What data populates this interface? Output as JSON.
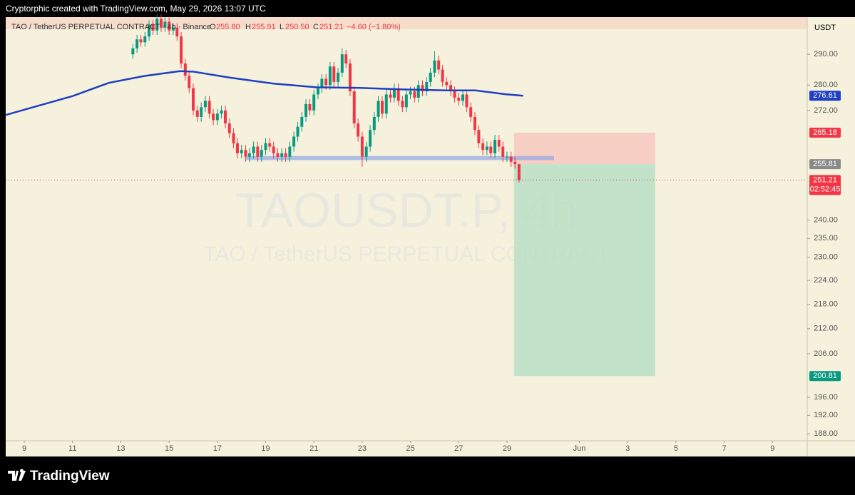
{
  "top_bar": "Cryptorphic created with TradingView.com, May 29, 2026 13:07 UTC",
  "footer": {
    "brand": "TradingView"
  },
  "chart_data": {
    "type": "candlestick",
    "symbol": "TAO / TetherUS PERPETUAL CONTRACT · 4h · Binance",
    "legend": {
      "o_label": "O",
      "o": "255.80",
      "h_label": "H",
      "h": "255.91",
      "l_label": "L",
      "l": "250.50",
      "c_label": "C",
      "c": "251.21",
      "change": "−4.60 (−1.80%)"
    },
    "watermark": "TAOUSDT.P, 4h",
    "watermark_sub": "TAO / TetherUS PERPETUAL CONTRACT",
    "currency": "USDT",
    "log_scale": true,
    "up_color": "#089981",
    "down_color": "#f23645",
    "xlim": [
      8.23,
      41.44
    ],
    "xticks": [
      9,
      11,
      13,
      15,
      17,
      19,
      21,
      23,
      25,
      27,
      29,
      {
        "value": 32,
        "label": "Jun"
      },
      {
        "value": 34,
        "label": "3"
      },
      {
        "value": 36,
        "label": "5"
      },
      {
        "value": 38,
        "label": "7"
      },
      {
        "value": 40,
        "label": "9"
      }
    ],
    "ylim": [
      186.5,
      302.6
    ],
    "yticks": [
      {
        "value": 290,
        "label": "290.00"
      },
      {
        "value": 280,
        "label": "280.00"
      },
      {
        "value": 272,
        "label": "272.00"
      },
      {
        "value": 240,
        "label": "240.00"
      },
      {
        "value": 235,
        "label": "235.00"
      },
      {
        "value": 230,
        "label": "230.00"
      },
      {
        "value": 224,
        "label": "224.00"
      },
      {
        "value": 218,
        "label": "218.00"
      },
      {
        "value": 212,
        "label": "212.00"
      },
      {
        "value": 206,
        "label": "206.00"
      },
      {
        "value": 196,
        "label": "196.00"
      },
      {
        "value": 192,
        "label": "192.00"
      },
      {
        "value": 188,
        "label": "188.00"
      }
    ],
    "x": [
      13.5,
      13.67,
      13.83,
      14,
      14.17,
      14.33,
      14.5,
      14.67,
      14.83,
      15,
      15.17,
      15.33,
      15.5,
      15.67,
      15.83,
      16,
      16.17,
      16.33,
      16.5,
      16.67,
      16.83,
      17,
      17.17,
      17.33,
      17.5,
      17.67,
      17.83,
      18,
      18.17,
      18.33,
      18.5,
      18.67,
      18.83,
      19,
      19.17,
      19.33,
      19.5,
      19.67,
      19.83,
      20,
      20.17,
      20.33,
      20.5,
      20.67,
      20.83,
      21,
      21.17,
      21.33,
      21.5,
      21.67,
      21.83,
      22,
      22.17,
      22.33,
      22.5,
      22.67,
      22.83,
      23,
      23.17,
      23.33,
      23.5,
      23.67,
      23.83,
      24,
      24.17,
      24.33,
      24.5,
      24.67,
      24.83,
      25,
      25.17,
      25.33,
      25.5,
      25.67,
      25.83,
      26,
      26.17,
      26.33,
      26.5,
      26.67,
      26.83,
      27,
      27.17,
      27.33,
      27.5,
      27.67,
      27.83,
      28,
      28.17,
      28.33,
      28.5,
      28.67,
      28.83,
      29,
      29.17,
      29.33,
      29.5
    ],
    "open": [
      290,
      292,
      295,
      294,
      296,
      300,
      298,
      302,
      299,
      301,
      298,
      299,
      296,
      287,
      283,
      279,
      272,
      270,
      273,
      275,
      271,
      269,
      271,
      272,
      268,
      265,
      262,
      259,
      260,
      258,
      259,
      261,
      258,
      260,
      262,
      261,
      259,
      258,
      259,
      258,
      261,
      264,
      267,
      270,
      274,
      272,
      277,
      279,
      282,
      280,
      286,
      281,
      284,
      290,
      287,
      278,
      268,
      264,
      258,
      261,
      266,
      270,
      275,
      271,
      277,
      276,
      279,
      275,
      273,
      277,
      278,
      276,
      280,
      278,
      281,
      284,
      288,
      285,
      281,
      280,
      278,
      276,
      275,
      277,
      273,
      270,
      266,
      262,
      260,
      261,
      259,
      263,
      261,
      258,
      258,
      256.5,
      255.8
    ],
    "high": [
      293.5,
      296.5,
      296.5,
      297.5,
      301.5,
      301.5,
      303.5,
      303.5,
      302.5,
      302.5,
      300.5,
      300.5,
      297.5,
      288.5,
      284.5,
      280.5,
      273.5,
      274.5,
      276.5,
      276.5,
      272.5,
      272.5,
      273.5,
      273.5,
      269.5,
      266.5,
      263.5,
      261.5,
      261.5,
      260.5,
      262.5,
      262.5,
      261.5,
      263.5,
      263.5,
      262.5,
      260.5,
      260.5,
      260.5,
      262.5,
      265.5,
      268.5,
      271.5,
      275.5,
      275.5,
      278.5,
      280.5,
      283.5,
      283.5,
      287.5,
      287.5,
      285.5,
      292,
      291.5,
      288.5,
      279.5,
      269.5,
      265.5,
      262.5,
      267.5,
      271.5,
      276.5,
      276.5,
      278.5,
      278.5,
      280.5,
      280.5,
      276.5,
      278.5,
      279.5,
      279.5,
      281.5,
      281.5,
      282.5,
      285.5,
      291,
      289.5,
      286.5,
      282.5,
      281.5,
      279.5,
      277.5,
      278.5,
      278.5,
      274.5,
      271.5,
      267.5,
      263.5,
      262.5,
      262.5,
      264.5,
      264.5,
      262.5,
      259.5,
      259.5,
      258,
      255.91
    ],
    "low": [
      288.5,
      290.5,
      292.5,
      292.5,
      294.5,
      296.5,
      296.5,
      297.5,
      297.5,
      296.5,
      296.5,
      294.5,
      285.5,
      281.5,
      277.5,
      270.5,
      268.5,
      268.5,
      271.5,
      269.5,
      267.5,
      267.5,
      269.5,
      266.5,
      263.5,
      260.5,
      257.5,
      257.5,
      256.5,
      256.5,
      257.5,
      256.5,
      256.5,
      258.5,
      259.5,
      257.5,
      256.5,
      256.5,
      256.5,
      256.5,
      259.5,
      262.5,
      265.5,
      268.5,
      270.5,
      270.5,
      275.5,
      277.5,
      278.5,
      278.5,
      279.5,
      279.5,
      282.5,
      285.5,
      276.5,
      266.5,
      262.5,
      255,
      256.5,
      259.5,
      264.5,
      268.5,
      269.5,
      269.5,
      274.5,
      274.5,
      273.5,
      271.5,
      271.5,
      275.5,
      274.5,
      274.5,
      276.5,
      276.5,
      279.5,
      282.5,
      283.5,
      279.5,
      278.5,
      276.5,
      274.5,
      273.5,
      273.5,
      271.5,
      268.5,
      264.5,
      260.5,
      258.5,
      258.5,
      257.5,
      257.5,
      259.5,
      256.5,
      256.5,
      255,
      254.5,
      250.5
    ],
    "close": [
      292,
      295,
      294,
      296,
      300,
      298,
      302,
      299,
      301,
      298,
      299,
      296,
      287,
      283,
      279,
      272,
      270,
      273,
      275,
      271,
      269,
      271,
      272,
      268,
      265,
      262,
      259,
      260,
      258,
      259,
      261,
      258,
      260,
      262,
      261,
      259,
      258,
      259,
      258,
      261,
      264,
      267,
      270,
      274,
      272,
      277,
      279,
      282,
      280,
      286,
      281,
      284,
      290,
      287,
      278,
      268,
      264,
      258,
      261,
      266,
      270,
      275,
      271,
      277,
      276,
      279,
      275,
      273,
      277,
      278,
      276,
      280,
      278,
      281,
      284,
      288,
      285,
      281,
      280,
      278,
      276,
      275,
      277,
      273,
      270,
      266,
      262,
      260,
      261,
      259,
      263,
      261,
      258,
      258,
      256.5,
      255.8,
      251.21
    ],
    "countdown": "02:52:45",
    "ma": {
      "color": "#1e3fc1",
      "x": [
        8.23,
        11,
        12.5,
        13.96,
        15.44,
        16.03,
        17.5,
        19.3,
        21.1,
        22.9,
        24.7,
        26.5,
        27.7,
        28.9,
        29.67
      ],
      "values": [
        270.6,
        276.5,
        280.7,
        282.9,
        284.5,
        284.3,
        282.4,
        280.5,
        279.3,
        279.1,
        278.6,
        278.3,
        278.3,
        277.1,
        276.61
      ]
    },
    "zone": {
      "color": "#8fa8e8",
      "x": [
        18.19,
        30.95
      ],
      "values": [
        257,
        258.2
      ]
    },
    "position": {
      "entry": 255.81,
      "stop": 265.18,
      "target": 200.81,
      "x": [
        29.29,
        35.14
      ]
    }
  }
}
